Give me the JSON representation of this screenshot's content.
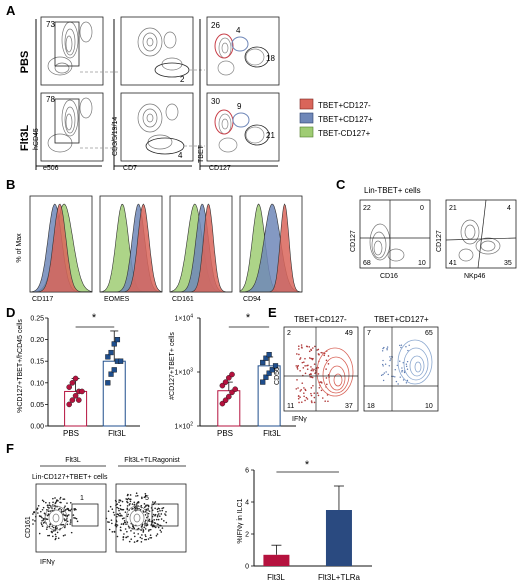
{
  "panels": {
    "A": {
      "label": "A",
      "rows": [
        "PBS",
        "Flt3L"
      ],
      "axes": {
        "col1_x": "e506",
        "col1_y": "hCD45",
        "col2_x": "CD7",
        "col2_y": "CD3/5/19/14",
        "col3_x": "CD127",
        "col3_y": "TBET"
      },
      "gate_values": {
        "pbs_col1": "73",
        "pbs_col2": "2",
        "pbs_col3_tl": "26",
        "pbs_col3_tr": "4",
        "pbs_col3_r": "18",
        "flt_col1": "78",
        "flt_col2": "4",
        "flt_col3_tl": "30",
        "flt_col3_tr": "9",
        "flt_col3_r": "21"
      },
      "legend": [
        {
          "label": "TBET+CD127-",
          "color": "#d9655a"
        },
        {
          "label": "TBET+CD127+",
          "color": "#6f87b8"
        },
        {
          "label": "TBET-CD127+",
          "color": "#9fcc73"
        }
      ]
    },
    "B": {
      "label": "B",
      "ylabel": "% of Max",
      "markers": [
        "CD117",
        "EOMES",
        "CD161",
        "CD94"
      ]
    },
    "C": {
      "label": "C",
      "title": "Lin-TBET+ cells",
      "plot1": {
        "x": "CD16",
        "y": "CD127",
        "q": [
          "22",
          "0",
          "68",
          "10"
        ]
      },
      "plot2": {
        "x": "NKp46",
        "y": "CD127",
        "q": [
          "21",
          "4",
          "41",
          "35"
        ]
      }
    },
    "D": {
      "label": "D",
      "plot1": {
        "ylabel": "%CD127+TBET+/hCD45 cells",
        "yticks": [
          "0.00",
          "0.05",
          "0.10",
          "0.15",
          "0.20",
          "0.25"
        ],
        "sig": "*"
      },
      "plot2": {
        "ylabel": "#CD127+TBET+ cells",
        "yticks_base": "10",
        "yticks_exp": [
          "2",
          "3",
          "4"
        ],
        "yticks_prefix": "1×",
        "sig": "*"
      }
    },
    "E": {
      "label": "E",
      "plot1": {
        "title": "TBET+CD127-",
        "q": [
          "2",
          "49",
          "11",
          "37"
        ]
      },
      "plot2": {
        "title": "TBET+CD127+",
        "q": [
          "7",
          "65",
          "18",
          "10"
        ]
      },
      "xlabel": "IFNγ",
      "ylabel": "CD56"
    },
    "F": {
      "label": "F",
      "header1": "Flt3L",
      "header2": "Flt3L+TLRagonist",
      "subtitle": "Lin-CD127+TBET+ cells",
      "gate1": "1",
      "gate2": "5",
      "xlabel": "IFNγ",
      "ylabel": "CD161",
      "bar_ylabel": "%IFNγ in ILC1",
      "bar_yticks": [
        "0",
        "2",
        "4",
        "6"
      ],
      "sig": "*"
    }
  },
  "chart_data": [
    {
      "type": "scatter",
      "panel": "D-left",
      "categories": [
        "PBS",
        "Flt3L"
      ],
      "ylabel": "%CD127+TBET+/hCD45 cells",
      "ylim": [
        0,
        0.25
      ],
      "series": [
        {
          "name": "PBS",
          "color": "#b5123e",
          "mean": 0.08,
          "sd": 0.03,
          "points": [
            0.05,
            0.06,
            0.07,
            0.08,
            0.08,
            0.09,
            0.1,
            0.11,
            0.06
          ]
        },
        {
          "name": "Flt3L",
          "color": "#1f4e8c",
          "mean": 0.15,
          "sd": 0.07,
          "points": [
            0.1,
            0.12,
            0.13,
            0.15,
            0.15,
            0.16,
            0.17,
            0.19,
            0.2
          ]
        }
      ]
    },
    {
      "type": "scatter",
      "panel": "D-right",
      "categories": [
        "PBS",
        "Flt3L"
      ],
      "ylabel": "#CD127+TBET+ cells",
      "ylim": [
        100,
        10000
      ],
      "yscale": "log",
      "series": [
        {
          "name": "PBS",
          "color": "#b5123e",
          "mean": 450,
          "sd": 200,
          "points": [
            260,
            300,
            350,
            420,
            480,
            560,
            650,
            780,
            900
          ]
        },
        {
          "name": "Flt3L",
          "color": "#1f4e8c",
          "mean": 1300,
          "sd": 600,
          "points": [
            650,
            800,
            950,
            1100,
            1300,
            1500,
            1800,
            2100
          ]
        }
      ]
    },
    {
      "type": "bar",
      "panel": "F",
      "categories": [
        "Flt3L",
        "Flt3L+TLRa"
      ],
      "values": [
        0.7,
        3.5
      ],
      "errors": [
        0.6,
        1.5
      ],
      "colors": [
        "#b5123e",
        "#2a4a80"
      ],
      "ylabel": "%IFNγ in ILC1",
      "ylim": [
        0,
        6
      ]
    }
  ]
}
